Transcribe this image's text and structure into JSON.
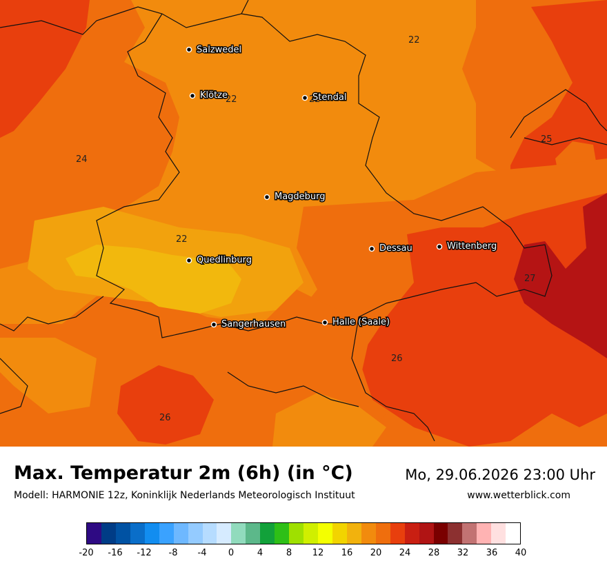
{
  "header": {
    "title": "Max. Temperatur 2m (6h) (in °C)",
    "subtitle": "Modell: HARMONIE 12z, Koninklijk Nederlands Meteorologisch Instituut",
    "datetime": "Mo, 29.06.2026 23:00 Uhr",
    "website": "www.wetterblick.com"
  },
  "map": {
    "cities": [
      {
        "name": "Salzwedel"
      },
      {
        "name": "Klötze"
      },
      {
        "name": "Stendal"
      },
      {
        "name": "Magdeburg"
      },
      {
        "name": "Dessau"
      },
      {
        "name": "Wittenberg"
      },
      {
        "name": "Quedlinburg"
      },
      {
        "name": "Sangerhausen"
      },
      {
        "name": "Halle (Saale)"
      }
    ],
    "contour_labels": [
      "22",
      "22",
      "22",
      "24",
      "22",
      "25",
      "27",
      "26",
      "26"
    ]
  },
  "legend": {
    "ticks": [
      "-20",
      "-16",
      "-12",
      "-8",
      "-4",
      "0",
      "4",
      "8",
      "12",
      "16",
      "20",
      "24",
      "28",
      "32",
      "36",
      "40"
    ],
    "colors": [
      "#2e0a83",
      "#003c86",
      "#0052a3",
      "#0a6ec9",
      "#128df0",
      "#3aa2ff",
      "#6eb8ff",
      "#94cbff",
      "#b6dcff",
      "#d6ebff",
      "#91dbbd",
      "#5cb88a",
      "#12a13a",
      "#2ebf17",
      "#9fe000",
      "#d0ef00",
      "#f4ff00",
      "#f2d400",
      "#f2b20d",
      "#f28b0d",
      "#ef6e0d",
      "#e83f0d",
      "#c91f12",
      "#b01414",
      "#7a0000",
      "#8c3030",
      "#c27373",
      "#ffb3b3",
      "#ffe0e0",
      "#ffffff"
    ]
  }
}
